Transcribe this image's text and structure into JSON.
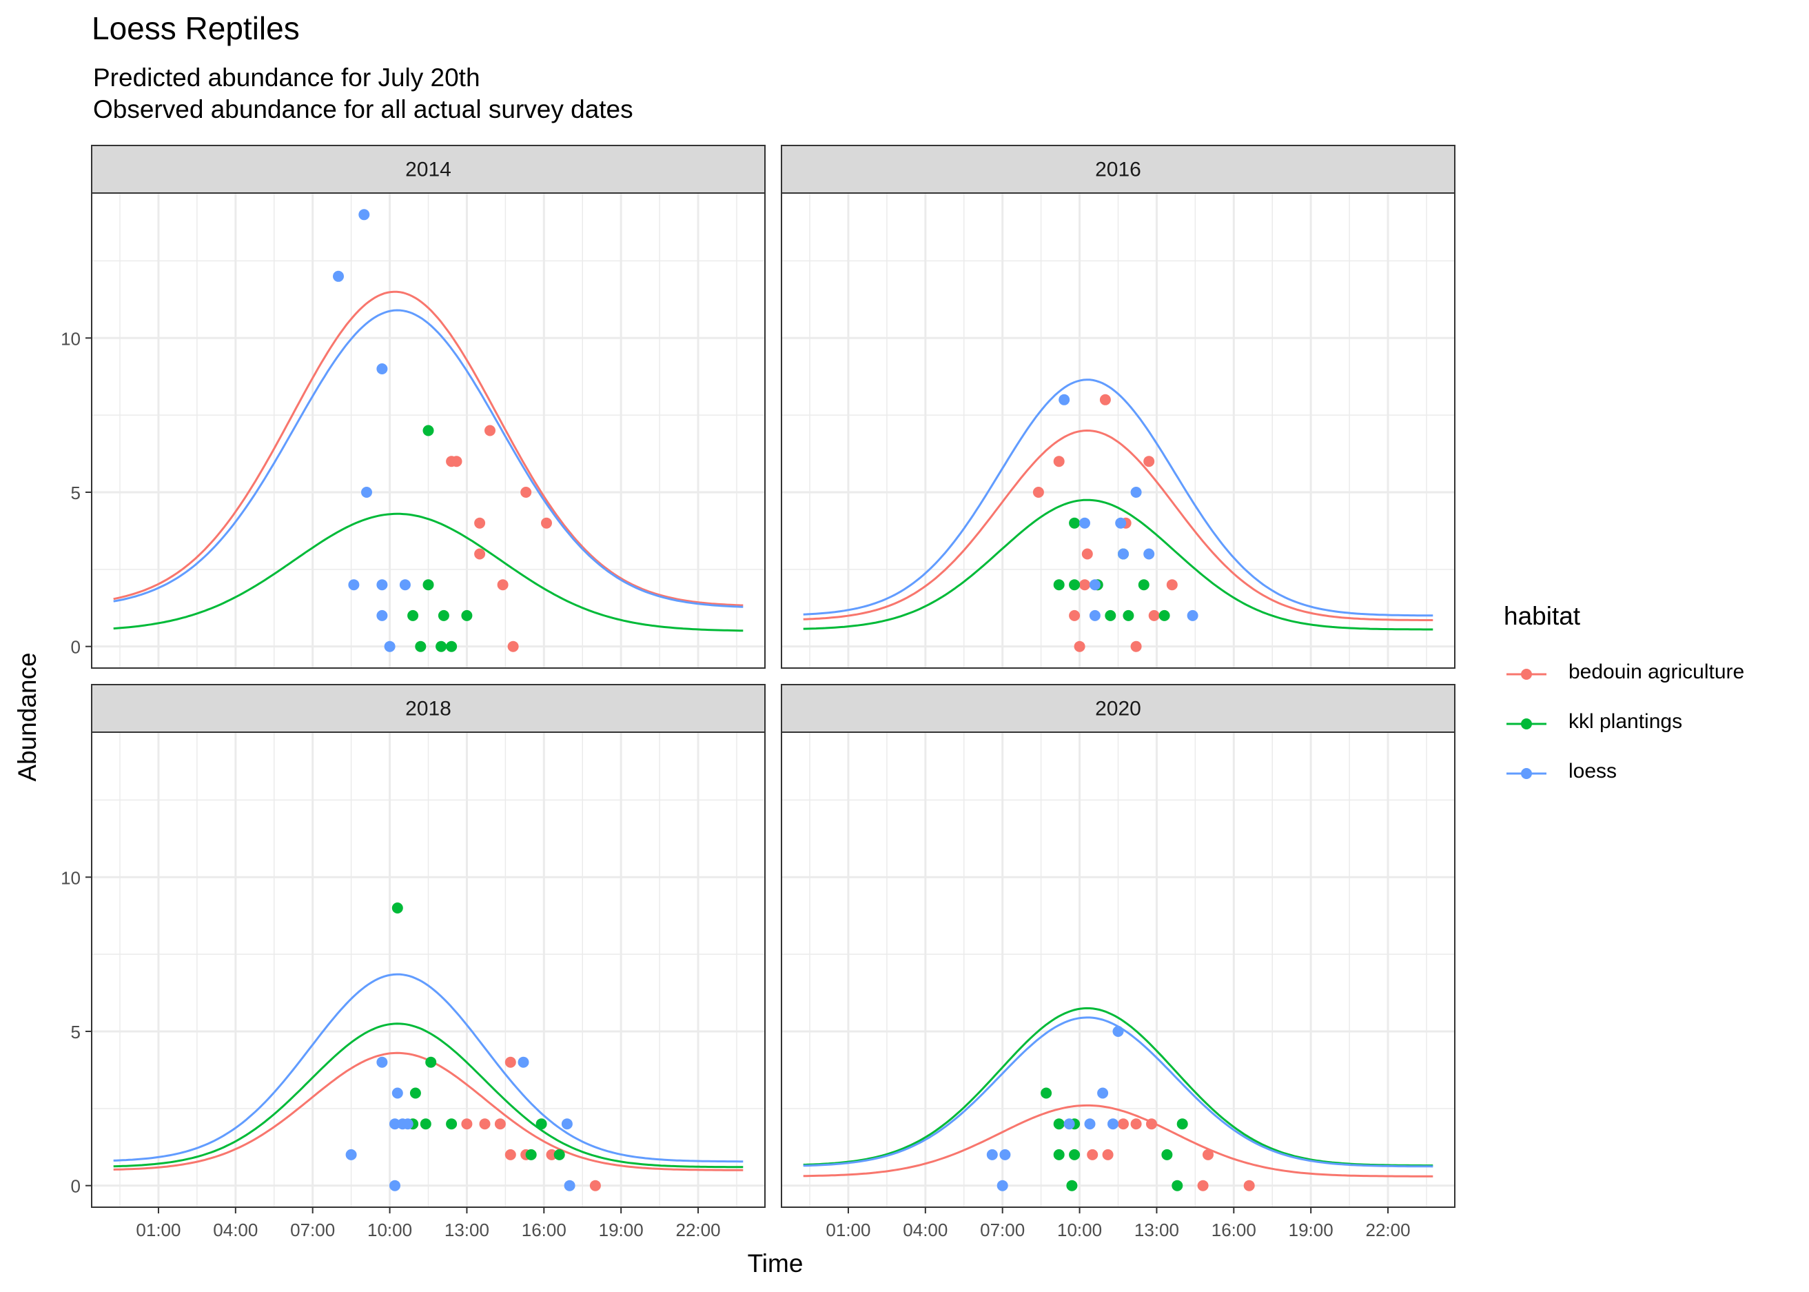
{
  "title": "Loess Reptiles",
  "subtitle_lines": [
    "Predicted abundance for July 20th",
    "Observed abundance for all actual survey dates"
  ],
  "xlabel": "Time",
  "ylabel": "Abundance",
  "legend": {
    "title": "habitat",
    "items": [
      {
        "key": "bedouin agriculture",
        "label": "bedouin agriculture"
      },
      {
        "key": "kkl plantings",
        "label": "kkl plantings"
      },
      {
        "key": "loess",
        "label": "loess"
      }
    ]
  },
  "colors": {
    "bedouin agriculture": "#F8766D",
    "kkl plantings": "#00BA38",
    "loess": "#619CFF",
    "strip_fill": "#D9D9D9",
    "grid": "#EBEBEB",
    "panel_border": "#333333"
  },
  "chart_data": {
    "type": "line",
    "facets": [
      "2014",
      "2016",
      "2018",
      "2020"
    ],
    "x_unit": "hours",
    "xlim": [
      -1.6,
      24.6
    ],
    "ylim": [
      -0.7,
      14.7
    ],
    "x_ticks": [
      1,
      4,
      7,
      10,
      13,
      16,
      19,
      22
    ],
    "x_tick_labels": [
      "01:00",
      "04:00",
      "07:00",
      "10:00",
      "13:00",
      "16:00",
      "19:00",
      "22:00"
    ],
    "y_ticks": [
      0,
      5,
      10
    ],
    "y_tick_labels": [
      "0",
      "5",
      "10"
    ],
    "grid": true,
    "legend_position": "right",
    "curve_x_range": [
      -0.75,
      23.75
    ],
    "curves": {
      "2014": {
        "bedouin agriculture": {
          "base": 1.3,
          "peak": 11.5,
          "peak_hour": 10.2,
          "width": 4.0
        },
        "kkl plantings": {
          "base": 0.5,
          "peak": 4.3,
          "peak_hour": 10.3,
          "width": 4.0
        },
        "loess": {
          "base": 1.25,
          "peak": 10.9,
          "peak_hour": 10.3,
          "width": 4.0
        }
      },
      "2016": {
        "bedouin agriculture": {
          "base": 0.85,
          "peak": 7.0,
          "peak_hour": 10.3,
          "width": 3.4
        },
        "kkl plantings": {
          "base": 0.55,
          "peak": 4.75,
          "peak_hour": 10.3,
          "width": 3.4
        },
        "loess": {
          "base": 1.0,
          "peak": 8.65,
          "peak_hour": 10.3,
          "width": 3.4
        }
      },
      "2018": {
        "bedouin agriculture": {
          "base": 0.5,
          "peak": 4.3,
          "peak_hour": 10.3,
          "width": 3.4
        },
        "kkl plantings": {
          "base": 0.6,
          "peak": 5.25,
          "peak_hour": 10.3,
          "width": 3.4
        },
        "loess": {
          "base": 0.78,
          "peak": 6.85,
          "peak_hour": 10.3,
          "width": 3.4
        }
      },
      "2020": {
        "bedouin agriculture": {
          "base": 0.3,
          "peak": 2.6,
          "peak_hour": 10.3,
          "width": 3.4
        },
        "kkl plantings": {
          "base": 0.65,
          "peak": 5.75,
          "peak_hour": 10.3,
          "width": 3.4
        },
        "loess": {
          "base": 0.62,
          "peak": 5.45,
          "peak_hour": 10.3,
          "width": 3.4
        }
      }
    },
    "points": {
      "2014": {
        "bedouin agriculture": [
          [
            13.9,
            7
          ],
          [
            12.4,
            6
          ],
          [
            12.6,
            6
          ],
          [
            15.3,
            5
          ],
          [
            13.5,
            4
          ],
          [
            16.1,
            4
          ],
          [
            13.5,
            3
          ],
          [
            14.4,
            2
          ],
          [
            14.8,
            0
          ]
        ],
        "kkl plantings": [
          [
            11.5,
            7
          ],
          [
            11.5,
            2
          ],
          [
            10.9,
            1
          ],
          [
            13.0,
            1
          ],
          [
            12.1,
            1
          ],
          [
            11.2,
            0
          ],
          [
            12.0,
            0
          ],
          [
            12.4,
            0
          ]
        ],
        "loess": [
          [
            9.0,
            14
          ],
          [
            8.0,
            12
          ],
          [
            9.7,
            9
          ],
          [
            9.1,
            5
          ],
          [
            8.6,
            2
          ],
          [
            9.7,
            2
          ],
          [
            10.6,
            2
          ],
          [
            9.7,
            1
          ],
          [
            10.0,
            0
          ]
        ]
      },
      "2016": {
        "bedouin agriculture": [
          [
            11.0,
            8
          ],
          [
            9.2,
            6
          ],
          [
            12.7,
            6
          ],
          [
            8.4,
            5
          ],
          [
            11.8,
            4
          ],
          [
            10.3,
            3
          ],
          [
            10.2,
            2
          ],
          [
            10.7,
            2
          ],
          [
            13.6,
            2
          ],
          [
            9.8,
            1
          ],
          [
            12.9,
            1
          ],
          [
            10.0,
            0
          ],
          [
            12.2,
            0
          ]
        ],
        "kkl plantings": [
          [
            9.8,
            4
          ],
          [
            11.7,
            3
          ],
          [
            9.2,
            2
          ],
          [
            9.8,
            2
          ],
          [
            10.7,
            2
          ],
          [
            12.5,
            2
          ],
          [
            11.2,
            1
          ],
          [
            11.9,
            1
          ],
          [
            13.3,
            1
          ]
        ],
        "loess": [
          [
            9.4,
            8
          ],
          [
            12.2,
            5
          ],
          [
            10.2,
            4
          ],
          [
            11.6,
            4
          ],
          [
            11.7,
            3
          ],
          [
            12.7,
            3
          ],
          [
            10.6,
            2
          ],
          [
            10.6,
            1
          ],
          [
            14.4,
            1
          ]
        ]
      },
      "2018": {
        "bedouin agriculture": [
          [
            14.7,
            4
          ],
          [
            13.0,
            2
          ],
          [
            13.7,
            2
          ],
          [
            14.3,
            2
          ],
          [
            14.7,
            1
          ],
          [
            15.3,
            1
          ],
          [
            16.3,
            1
          ],
          [
            18.0,
            0
          ]
        ],
        "kkl plantings": [
          [
            10.3,
            9
          ],
          [
            11.6,
            4
          ],
          [
            11.0,
            3
          ],
          [
            10.9,
            2
          ],
          [
            11.4,
            2
          ],
          [
            12.4,
            2
          ],
          [
            15.9,
            2
          ],
          [
            15.5,
            1
          ],
          [
            16.6,
            1
          ]
        ],
        "loess": [
          [
            9.7,
            4
          ],
          [
            15.2,
            4
          ],
          [
            10.3,
            3
          ],
          [
            10.2,
            2
          ],
          [
            10.5,
            2
          ],
          [
            10.7,
            2
          ],
          [
            16.9,
            2
          ],
          [
            8.5,
            1
          ],
          [
            17.0,
            0
          ],
          [
            10.2,
            0
          ]
        ]
      },
      "2020": {
        "bedouin agriculture": [
          [
            11.7,
            2
          ],
          [
            12.2,
            2
          ],
          [
            12.8,
            2
          ],
          [
            10.5,
            1
          ],
          [
            11.1,
            1
          ],
          [
            15.0,
            1
          ],
          [
            14.8,
            0
          ],
          [
            16.6,
            0
          ]
        ],
        "kkl plantings": [
          [
            8.7,
            3
          ],
          [
            9.2,
            2
          ],
          [
            9.8,
            2
          ],
          [
            14.0,
            2
          ],
          [
            9.2,
            1
          ],
          [
            9.8,
            1
          ],
          [
            13.4,
            1
          ],
          [
            9.7,
            0
          ],
          [
            13.8,
            0
          ]
        ],
        "loess": [
          [
            10.9,
            3
          ],
          [
            11.5,
            5
          ],
          [
            9.6,
            2
          ],
          [
            10.4,
            2
          ],
          [
            11.3,
            2
          ],
          [
            6.6,
            1
          ],
          [
            7.1,
            1
          ],
          [
            7.0,
            0
          ]
        ]
      }
    }
  }
}
